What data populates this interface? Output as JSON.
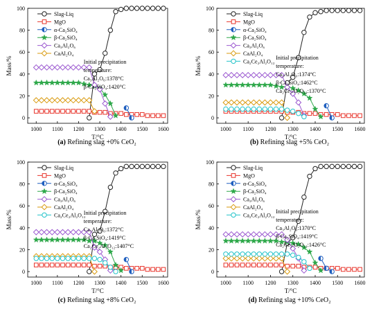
{
  "x_values": [
    1000,
    1025,
    1050,
    1075,
    1100,
    1125,
    1150,
    1175,
    1200,
    1225,
    1250,
    1275,
    1300,
    1325,
    1350,
    1375,
    1400,
    1425,
    1450,
    1475,
    1500,
    1525,
    1550,
    1575,
    1600
  ],
  "series_styles": [
    {
      "name": "Slag-Liq",
      "color": "#222222",
      "marker": "circle"
    },
    {
      "name": "MgO",
      "color": "#e8332a",
      "marker": "square"
    },
    {
      "name": "α-Ca₂SiO₄",
      "color": "#1f5fbf",
      "marker": "half-circle"
    },
    {
      "name": "β-Ca₂SiO₄",
      "color": "#2ea84a",
      "marker": "star"
    },
    {
      "name": "Ca₃Al₂O₆",
      "color": "#9b59d0",
      "marker": "diamond"
    },
    {
      "name": "CaAl₂O₄",
      "color": "#d99a0e",
      "marker": "diamond"
    },
    {
      "name": "Ca₂Ce₂Al₂O₁₂",
      "color": "#22c3c9",
      "marker": "circle"
    }
  ],
  "chart_data": [
    {
      "type": "line",
      "caption_label": "(a)",
      "caption_text": "Refining slag +0% CeO₂",
      "xlabel": "T/°C",
      "ylabel": "Mass/%",
      "xlim": [
        960,
        1620
      ],
      "ylim": [
        -5,
        100
      ],
      "xticks": [
        1000,
        1100,
        1200,
        1300,
        1400,
        1500,
        1600
      ],
      "yticks": [
        0,
        20,
        40,
        60,
        80,
        100
      ],
      "annotation": [
        "Initial precipitation",
        "temperature:",
        "Ca₃Al₂O₆:1378°C",
        "β-Ca₂SiO₄:1420°C"
      ],
      "series": [
        {
          "name": "Slag-Liq",
          "values": [
            null,
            null,
            null,
            null,
            null,
            null,
            null,
            null,
            null,
            null,
            0,
            40,
            44,
            59,
            80,
            97,
            99,
            100,
            100,
            100,
            100,
            100,
            100,
            100,
            100
          ]
        },
        {
          "name": "MgO",
          "values": [
            6,
            6,
            6,
            6,
            6,
            6,
            6,
            6,
            6,
            6,
            6,
            5,
            5,
            5,
            4,
            4,
            4,
            3,
            3,
            3,
            3,
            2,
            2,
            2,
            2
          ]
        },
        {
          "name": "α-Ca₂SiO₄",
          "values": [
            null,
            null,
            null,
            null,
            null,
            null,
            null,
            null,
            null,
            null,
            null,
            null,
            null,
            null,
            null,
            null,
            null,
            9,
            0,
            null,
            null,
            null,
            null,
            null,
            null
          ]
        },
        {
          "name": "β-Ca₂SiO₄",
          "values": [
            32,
            32,
            32,
            32,
            32,
            32,
            32,
            32,
            32,
            31,
            30,
            29,
            27,
            21,
            13,
            2,
            null,
            null,
            null,
            null,
            null,
            null,
            null,
            null,
            null
          ]
        },
        {
          "name": "Ca₃Al₂O₆",
          "values": [
            46,
            46,
            46,
            46,
            46,
            46,
            46,
            46,
            46,
            46,
            46,
            30,
            26,
            13,
            1,
            null,
            null,
            null,
            null,
            null,
            null,
            null,
            null,
            null,
            null
          ]
        },
        {
          "name": "CaAl₂O₄",
          "values": [
            16,
            16,
            16,
            16,
            16,
            16,
            16,
            16,
            16,
            16,
            16,
            6,
            null,
            null,
            null,
            null,
            null,
            null,
            null,
            null,
            null,
            null,
            null,
            null,
            null
          ]
        }
      ]
    },
    {
      "type": "line",
      "caption_label": "(b)",
      "caption_text": "Refining slag +5% CeO₂",
      "xlabel": "T/°C",
      "ylabel": "Mass/%",
      "xlim": [
        960,
        1620
      ],
      "ylim": [
        -5,
        100
      ],
      "xticks": [
        1000,
        1100,
        1200,
        1300,
        1400,
        1500,
        1600
      ],
      "yticks": [
        0,
        20,
        40,
        60,
        80,
        100
      ],
      "annotation": [
        "Initial precipitation",
        "temperature:",
        "Ca₃Al₂O₆:1374°C",
        "β-Ca₂SiO₄:1462°C",
        "Ca₂Ce₂Al₂O₁₂:1370°C"
      ],
      "series": [
        {
          "name": "Slag-Liq",
          "values": [
            null,
            null,
            null,
            null,
            null,
            null,
            null,
            null,
            null,
            null,
            0,
            32,
            37,
            55,
            78,
            92,
            96,
            97,
            98,
            98,
            98,
            98,
            98,
            98,
            98
          ]
        },
        {
          "name": "MgO",
          "values": [
            6,
            6,
            6,
            6,
            6,
            6,
            6,
            6,
            6,
            6,
            6,
            5,
            5,
            5,
            4,
            4,
            4,
            3,
            3,
            3,
            3,
            2,
            2,
            2,
            2
          ]
        },
        {
          "name": "α-Ca₂SiO₄",
          "values": [
            null,
            null,
            null,
            null,
            null,
            null,
            null,
            null,
            null,
            null,
            null,
            null,
            null,
            null,
            null,
            null,
            null,
            null,
            11,
            0,
            null,
            null,
            null,
            null,
            null
          ]
        },
        {
          "name": "β-Ca₂SiO₄",
          "values": [
            30,
            30,
            30,
            30,
            30,
            30,
            30,
            30,
            30,
            29,
            28,
            28,
            27,
            25,
            22,
            18,
            8,
            1,
            null,
            null,
            null,
            null,
            null,
            null,
            null
          ]
        },
        {
          "name": "Ca₃Al₂O₆",
          "values": [
            39,
            39,
            39,
            39,
            39,
            39,
            39,
            39,
            39,
            39,
            39,
            28,
            22,
            14,
            2,
            null,
            null,
            null,
            null,
            null,
            null,
            null,
            null,
            null,
            null
          ]
        },
        {
          "name": "CaAl₂O₄",
          "values": [
            14,
            14,
            14,
            14,
            14,
            14,
            14,
            14,
            14,
            14,
            14,
            0,
            null,
            null,
            null,
            null,
            null,
            null,
            null,
            null,
            null,
            null,
            null,
            null,
            null
          ]
        },
        {
          "name": "Ca₂Ce₂Al₂O₁₂",
          "values": [
            8,
            8,
            8,
            8,
            8,
            8,
            8,
            8,
            8,
            8,
            8,
            7,
            6,
            4,
            1,
            null,
            null,
            null,
            null,
            null,
            null,
            null,
            null,
            null,
            null
          ]
        }
      ]
    },
    {
      "type": "line",
      "caption_label": "(c)",
      "caption_text": "Refining slag +8% CeO₂",
      "xlabel": "T/°C",
      "ylabel": "Mass/%",
      "xlim": [
        960,
        1620
      ],
      "ylim": [
        -5,
        100
      ],
      "xticks": [
        1000,
        1100,
        1200,
        1300,
        1400,
        1500,
        1600
      ],
      "yticks": [
        0,
        20,
        40,
        60,
        80,
        100
      ],
      "annotation": [
        "Initial precipitation",
        "temperature:",
        "Ca₃Al₂O₆:1372°C",
        "β-Ca₂SiO₄:1419°C",
        "Ca₂Ce₂Al₂O₁₂:1407°C"
      ],
      "series": [
        {
          "name": "Slag-Liq",
          "values": [
            null,
            null,
            null,
            null,
            null,
            null,
            null,
            null,
            null,
            null,
            0,
            34,
            37,
            55,
            77,
            90,
            94,
            96,
            96,
            96,
            96,
            96,
            96,
            96,
            96
          ]
        },
        {
          "name": "MgO",
          "values": [
            6,
            6,
            6,
            6,
            6,
            6,
            6,
            6,
            6,
            6,
            6,
            5,
            5,
            5,
            4,
            4,
            4,
            3,
            3,
            3,
            3,
            2,
            2,
            2,
            2
          ]
        },
        {
          "name": "α-Ca₂SiO₄",
          "values": [
            null,
            null,
            null,
            null,
            null,
            null,
            null,
            null,
            null,
            null,
            null,
            null,
            null,
            null,
            null,
            null,
            null,
            11,
            0,
            null,
            null,
            null,
            null,
            null,
            null
          ]
        },
        {
          "name": "β-Ca₂SiO₄",
          "values": [
            29,
            29,
            29,
            29,
            29,
            29,
            29,
            29,
            29,
            29,
            28,
            28,
            26,
            24,
            18,
            6,
            1,
            null,
            null,
            null,
            null,
            null,
            null,
            null,
            null
          ]
        },
        {
          "name": "Ca₃Al₂O₆",
          "values": [
            36,
            36,
            36,
            36,
            36,
            36,
            36,
            36,
            36,
            36,
            36,
            22,
            18,
            11,
            1,
            null,
            null,
            null,
            null,
            null,
            null,
            null,
            null,
            null,
            null
          ]
        },
        {
          "name": "CaAl₂O₄",
          "values": [
            14,
            14,
            14,
            14,
            14,
            14,
            14,
            14,
            14,
            14,
            14,
            0,
            null,
            null,
            null,
            null,
            null,
            null,
            null,
            null,
            null,
            null,
            null,
            null,
            null
          ]
        },
        {
          "name": "Ca₂Ce₂Al₂O₁₂",
          "values": [
            12,
            12,
            12,
            12,
            12,
            12,
            12,
            12,
            12,
            12,
            12,
            12,
            11,
            8,
            4,
            0,
            null,
            null,
            null,
            null,
            null,
            null,
            null,
            null,
            null
          ]
        }
      ]
    },
    {
      "type": "line",
      "caption_label": "(d)",
      "caption_text": "Refining slag +10% CeO₂",
      "xlabel": "T/°C",
      "ylabel": "Mass/%",
      "xlim": [
        960,
        1620
      ],
      "ylim": [
        -5,
        100
      ],
      "xticks": [
        1000,
        1100,
        1200,
        1300,
        1400,
        1500,
        1600
      ],
      "yticks": [
        0,
        20,
        40,
        60,
        80,
        100
      ],
      "annotation": [
        "Initial precipitation",
        "temperature:",
        "Ca₃Al₂O₆:1370°C",
        "β-Ca₂SiO₄:1419°C",
        "Ca₂Ce₂Al₂O₁₂:1426°C"
      ],
      "series": [
        {
          "name": "Slag-Liq",
          "values": [
            null,
            null,
            null,
            null,
            null,
            null,
            null,
            null,
            null,
            null,
            0,
            26,
            31,
            46,
            68,
            87,
            94,
            96,
            96,
            96,
            96,
            96,
            96,
            96,
            96
          ]
        },
        {
          "name": "MgO",
          "values": [
            6,
            6,
            6,
            6,
            6,
            6,
            6,
            6,
            6,
            6,
            6,
            5,
            5,
            5,
            4,
            4,
            4,
            3,
            3,
            3,
            3,
            2,
            2,
            2,
            2
          ]
        },
        {
          "name": "α-Ca₂SiO₄",
          "values": [
            null,
            null,
            null,
            null,
            null,
            null,
            null,
            null,
            null,
            null,
            null,
            null,
            null,
            null,
            null,
            null,
            null,
            12,
            3,
            0,
            null,
            null,
            null,
            null,
            null
          ]
        },
        {
          "name": "β-Ca₂SiO₄",
          "values": [
            28,
            28,
            28,
            28,
            28,
            28,
            28,
            28,
            28,
            28,
            27,
            27,
            26,
            25,
            22,
            18,
            8,
            1,
            null,
            null,
            null,
            null,
            null,
            null,
            null
          ]
        },
        {
          "name": "Ca₃Al₂O₆",
          "values": [
            34,
            34,
            34,
            34,
            34,
            34,
            34,
            34,
            34,
            34,
            34,
            29,
            21,
            12,
            1,
            null,
            null,
            null,
            null,
            null,
            null,
            null,
            null,
            null,
            null
          ]
        },
        {
          "name": "CaAl₂O₄",
          "values": [
            12,
            12,
            12,
            12,
            12,
            12,
            12,
            12,
            12,
            12,
            12,
            0,
            null,
            null,
            null,
            null,
            null,
            null,
            null,
            null,
            null,
            null,
            null,
            null,
            null
          ]
        },
        {
          "name": "Ca₂Ce₂Al₂O₁₂",
          "values": [
            16,
            16,
            16,
            16,
            16,
            16,
            16,
            16,
            16,
            16,
            16,
            16,
            15,
            13,
            9,
            3,
            null,
            null,
            null,
            null,
            null,
            null,
            null,
            null,
            null
          ]
        }
      ]
    }
  ]
}
